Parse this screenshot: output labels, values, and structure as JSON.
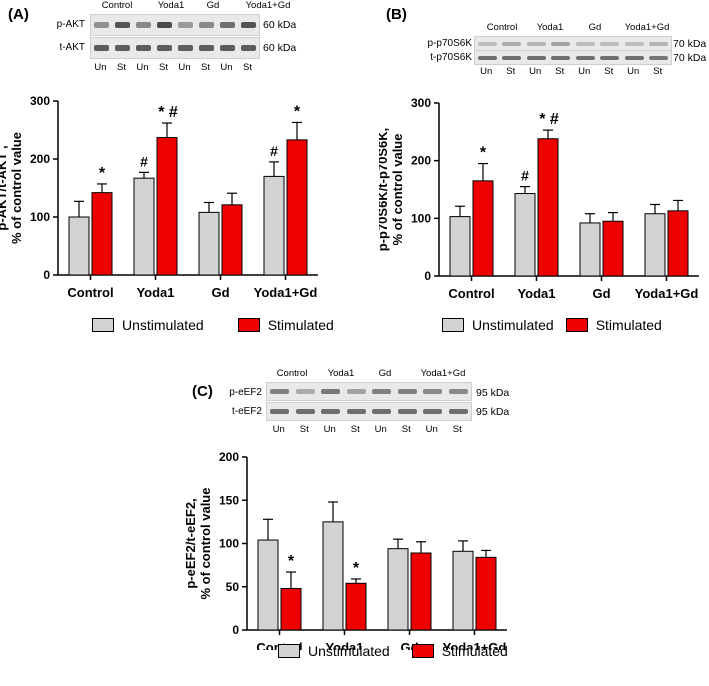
{
  "colors": {
    "unstimulated": "#d3d3d3",
    "stimulated": "#ee0000",
    "band": "#3a3a3a"
  },
  "legend": {
    "unstimulated": "Unstimulated",
    "stimulated": "Stimulated"
  },
  "panels": [
    {
      "label": "(A)",
      "blot": {
        "lanes": [
          "Control",
          "Yoda1",
          "Gd",
          "Yoda1+Gd"
        ],
        "rows": [
          {
            "name": "p-AKT",
            "kda": "60 kDa",
            "intensities": [
              0.5,
              0.85,
              0.55,
              0.9,
              0.45,
              0.55,
              0.7,
              0.85
            ]
          },
          {
            "name": "t-AKT",
            "kda": "60 kDa",
            "intensities": [
              0.8,
              0.8,
              0.8,
              0.8,
              0.8,
              0.8,
              0.8,
              0.8
            ]
          }
        ],
        "treatments": [
          "Un",
          "St",
          "Un",
          "St",
          "Un",
          "St",
          "Un",
          "St"
        ]
      }
    },
    {
      "label": "(B)",
      "blot": {
        "lanes": [
          "Control",
          "Yoda1",
          "Gd",
          "Yoda1+Gd"
        ],
        "rows": [
          {
            "name": "p-p70S6K",
            "kda": "70 kDa",
            "intensities": [
              0.25,
              0.35,
              0.3,
              0.4,
              0.25,
              0.25,
              0.25,
              0.3
            ]
          },
          {
            "name": "t-p70S6K",
            "kda": "70 kDa",
            "intensities": [
              0.7,
              0.7,
              0.7,
              0.7,
              0.7,
              0.7,
              0.7,
              0.65
            ]
          }
        ],
        "treatments": [
          "Un",
          "St",
          "Un",
          "St",
          "Un",
          "St",
          "Un",
          "St"
        ]
      }
    },
    {
      "label": "(C)",
      "blot": {
        "lanes": [
          "Control",
          "Yoda1",
          "Gd",
          "Yoda1+Gd"
        ],
        "rows": [
          {
            "name": "p-eEF2",
            "kda": "95 kDa",
            "intensities": [
              0.6,
              0.35,
              0.65,
              0.4,
              0.6,
              0.6,
              0.55,
              0.55
            ]
          },
          {
            "name": "t-eEF2",
            "kda": "95 kDa",
            "intensities": [
              0.7,
              0.7,
              0.7,
              0.7,
              0.7,
              0.7,
              0.7,
              0.7
            ]
          }
        ],
        "treatments": [
          "Un",
          "St",
          "Un",
          "St",
          "Un",
          "St",
          "Un",
          "St"
        ]
      }
    }
  ],
  "chart_data": [
    {
      "type": "bar",
      "ylabel_line1": "p-AKT/t-AKT ,",
      "ylabel_line2": "% of control value",
      "ylim": [
        0,
        300
      ],
      "yticks": [
        "0",
        "100",
        "200",
        "300"
      ],
      "categories": [
        "Control",
        "Yoda1",
        "Gd",
        "Yoda1+Gd"
      ],
      "series": [
        {
          "name": "Unstimulated",
          "values": [
            100,
            167,
            108,
            170
          ],
          "errors": [
            27,
            10,
            17,
            25
          ],
          "annotations": [
            "",
            "#",
            "",
            "#"
          ]
        },
        {
          "name": "Stimulated",
          "values": [
            142,
            237,
            121,
            233
          ],
          "errors": [
            15,
            25,
            20,
            30
          ],
          "annotations": [
            "*",
            "*#",
            "",
            "*"
          ]
        }
      ]
    },
    {
      "type": "bar",
      "ylabel_line1": "p-p70S6K/t-p70S6K,",
      "ylabel_line2": "% of control value",
      "ylim": [
        0,
        300
      ],
      "yticks": [
        "0",
        "100",
        "200",
        "300"
      ],
      "categories": [
        "Control",
        "Yoda1",
        "Gd",
        "Yoda1+Gd"
      ],
      "series": [
        {
          "name": "Unstimulated",
          "values": [
            103,
            143,
            92,
            108
          ],
          "errors": [
            18,
            12,
            16,
            16
          ],
          "annotations": [
            "",
            "#",
            "",
            ""
          ]
        },
        {
          "name": "Stimulated",
          "values": [
            165,
            238,
            95,
            113
          ],
          "errors": [
            30,
            15,
            15,
            18
          ],
          "annotations": [
            "*",
            "*#",
            "",
            ""
          ]
        }
      ]
    },
    {
      "type": "bar",
      "ylabel_line1": "p-eEF2/t-eEF2,",
      "ylabel_line2": "% of control value",
      "ylim": [
        0,
        200
      ],
      "yticks": [
        "0",
        "50",
        "100",
        "150",
        "200"
      ],
      "categories": [
        "Control",
        "Yoda1",
        "Gd",
        "Yoda1+Gd"
      ],
      "series": [
        {
          "name": "Unstimulated",
          "values": [
            104,
            125,
            94,
            91
          ],
          "errors": [
            24,
            23,
            11,
            12
          ],
          "annotations": [
            "",
            "",
            "",
            ""
          ]
        },
        {
          "name": "Stimulated",
          "values": [
            48,
            54,
            89,
            84
          ],
          "errors": [
            19,
            5,
            13,
            8
          ],
          "annotations": [
            "*",
            "*",
            "",
            ""
          ]
        }
      ]
    }
  ]
}
